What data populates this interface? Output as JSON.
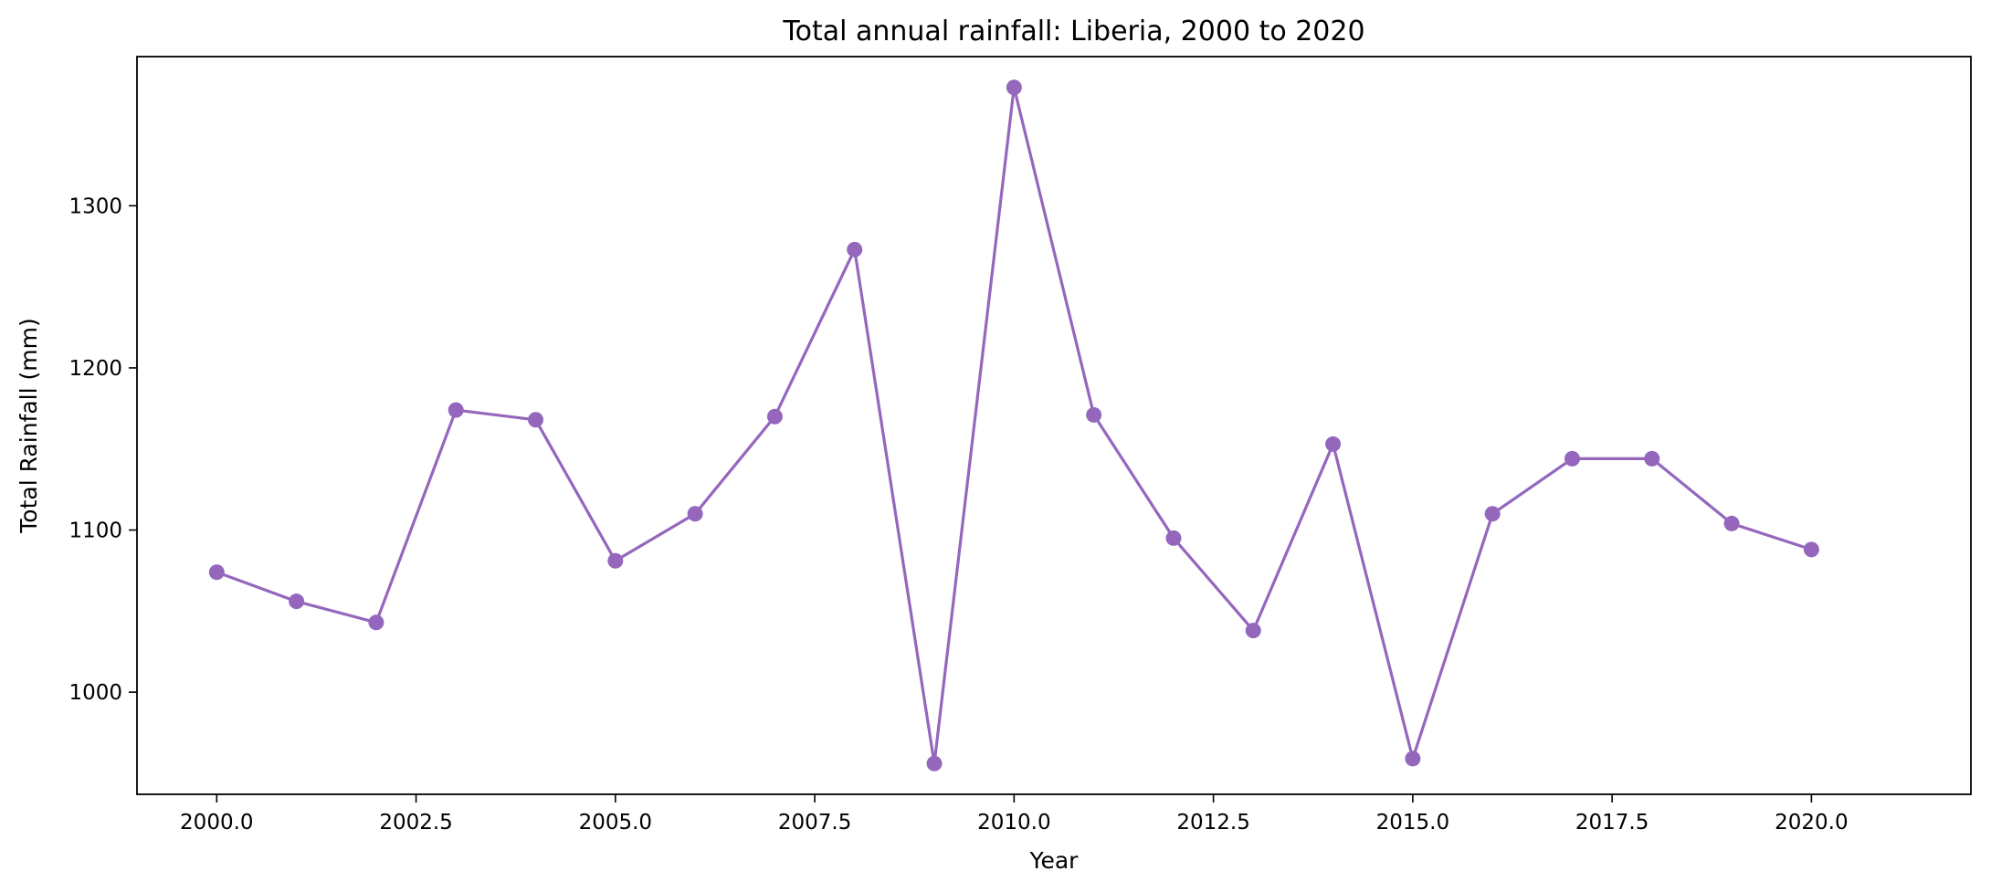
{
  "chart_data": {
    "type": "line",
    "title": "Total annual rainfall: Liberia, 2000 to 2020",
    "xlabel": "Year",
    "ylabel": "Total Rainfall (mm)",
    "xlim": [
      1999.0,
      2022.0
    ],
    "ylim": [
      937,
      1392
    ],
    "xticks": [
      2000.0,
      2002.5,
      2005.0,
      2007.5,
      2010.0,
      2012.5,
      2015.0,
      2017.5,
      2020.0
    ],
    "xtick_labels": [
      "2000.0",
      "2002.5",
      "2005.0",
      "2007.5",
      "2010.0",
      "2012.5",
      "2015.0",
      "2017.5",
      "2020.0"
    ],
    "yticks": [
      1000,
      1100,
      1200,
      1300
    ],
    "ytick_labels": [
      "1000",
      "1100",
      "1200",
      "1300"
    ],
    "grid": false,
    "series": [
      {
        "color": "#9467bd",
        "x": [
          2000,
          2001,
          2002,
          2003,
          2004,
          2005,
          2006,
          2007,
          2008,
          2009,
          2010,
          2011,
          2012,
          2013,
          2014,
          2015,
          2016,
          2017,
          2018,
          2019,
          2020
        ],
        "y": [
          1074,
          1056,
          1043,
          1174,
          1168,
          1081,
          1110,
          1170,
          1273,
          956,
          1373,
          1171,
          1095,
          1038,
          1153,
          959,
          1110,
          1144,
          1144,
          1104,
          1088
        ]
      }
    ]
  }
}
